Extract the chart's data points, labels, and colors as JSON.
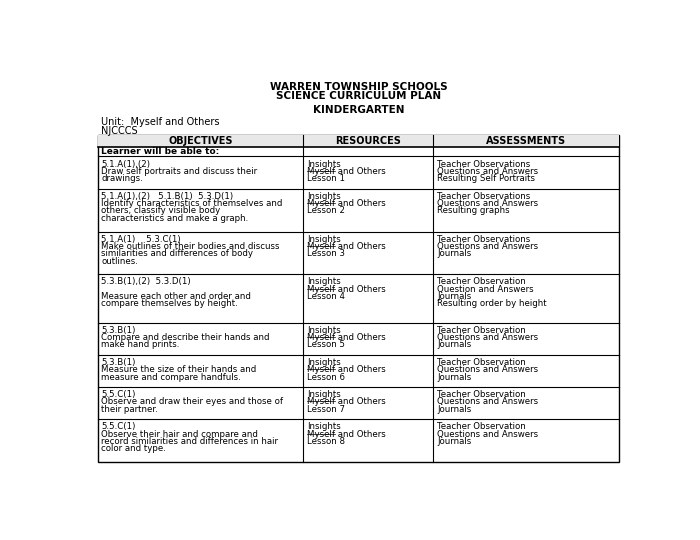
{
  "title_line1": "WARREN TOWNSHIP SCHOOLS",
  "title_line2": "SCIENCE CURRICULUM PLAN",
  "subtitle": "KINDERGARTEN",
  "unit": "Unit:  Myself and Others",
  "njcccs": "NJCCCS",
  "col_headers": [
    "OBJECTIVES",
    "RESOURCES",
    "ASSESSMENTS"
  ],
  "learner_row": "Learner will be able to:",
  "rows": [
    {
      "obj": [
        "5.1.A(1),(2)",
        "Draw self portraits and discuss their",
        "drawings."
      ],
      "res": [
        "Insights",
        "Myself and Others",
        "Lesson 1"
      ],
      "assess": [
        "Teacher Observations",
        "Questions and Answers",
        "Resulting Self Portraits"
      ]
    },
    {
      "obj": [
        "5.1.A(1),(2)   5.1.B(1)  5.3.D(1)",
        "Identify characteristics of themselves and",
        "others, classify visible body",
        "characteristics and make a graph."
      ],
      "res": [
        "Insights",
        "Myself and Others",
        "Lesson 2"
      ],
      "assess": [
        "Teacher Observations",
        "Questions and Answers",
        "Resulting graphs"
      ]
    },
    {
      "obj": [
        "5.1.A(1)    5.3.C(1)",
        "Make outlines of their bodies and discuss",
        "similarities and differences of body",
        "outlines."
      ],
      "res": [
        "Insights",
        "Myself and Others",
        "Lesson 3"
      ],
      "assess": [
        "Teacher Observations",
        "Questions and Answers",
        "Journals"
      ]
    },
    {
      "obj": [
        "5.3.B(1),(2)  5.3.D(1)",
        "",
        "Measure each other and order and",
        "compare themselves by height."
      ],
      "res": [
        "Insights",
        "Myself and Others",
        "Lesson 4"
      ],
      "assess": [
        "Teacher Observation",
        "Question and Answers",
        "Journals",
        "Resulting order by height"
      ]
    },
    {
      "obj": [
        "5.3.B(1)",
        "Compare and describe their hands and",
        "make hand prints."
      ],
      "res": [
        "Insights",
        "Myself and Others",
        "Lesson 5"
      ],
      "assess": [
        "Teacher Observation",
        "Questions and Answers",
        "Journals"
      ]
    },
    {
      "obj": [
        "5.3.B(1)",
        "Measure the size of their hands and",
        "measure and compare handfuls."
      ],
      "res": [
        "Insights",
        "Myself and Others",
        "Lesson 6"
      ],
      "assess": [
        "Teacher Observation",
        "Questions and Answers",
        "Journals"
      ]
    },
    {
      "obj": [
        "5.5.C(1)",
        "Observe and draw their eyes and those of",
        "their partner."
      ],
      "res": [
        "Insights",
        "Myself and Others",
        "Lesson 7"
      ],
      "assess": [
        "Teacher Observation",
        "Questions and Answers",
        "Journals"
      ]
    },
    {
      "obj": [
        "5.5.C(1)",
        "Observe their hair and compare and",
        "record similarities and differences in hair",
        "color and type."
      ],
      "res": [
        "Insights",
        "Myself and Others",
        "Lesson 8"
      ],
      "assess": [
        "Teacher Observation",
        "Questions and Answers",
        "Journals"
      ]
    }
  ],
  "bg_color": "#ffffff",
  "text_color": "#000000",
  "border_color": "#000000",
  "title_fontsize": 7.5,
  "subtitle_fontsize": 7.5,
  "unit_fontsize": 7.0,
  "header_fontsize": 7.0,
  "cell_fontsize": 6.2,
  "learner_fontsize": 6.5
}
